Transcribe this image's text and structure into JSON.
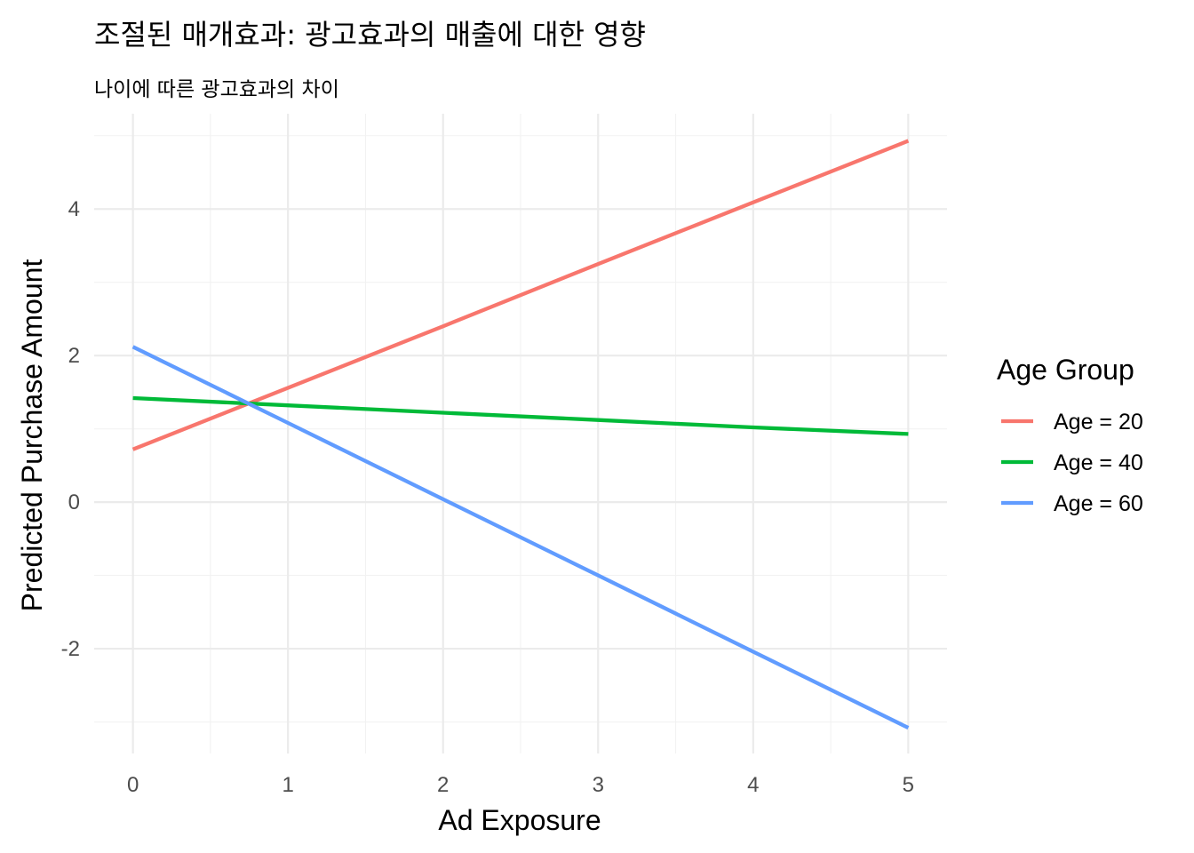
{
  "chart_data": {
    "type": "line",
    "title": "조절된 매개효과: 광고효과의 매출에 대한 영향",
    "subtitle": "나이에 따른 광고효과의 차이",
    "xlabel": "Ad Exposure",
    "ylabel": "Predicted Purchase Amount",
    "xlim": [
      -0.25,
      5.25
    ],
    "ylim": [
      -3.43,
      5.3
    ],
    "x_ticks": [
      0,
      1,
      2,
      3,
      4,
      5
    ],
    "y_ticks": [
      -2,
      0,
      2,
      4
    ],
    "grid": true,
    "legend": {
      "title": "Age Group",
      "position": "right"
    },
    "x": [
      0,
      1,
      2,
      3,
      4,
      5
    ],
    "series": [
      {
        "name": "Age = 20",
        "color": "#F8766D",
        "values": [
          0.72,
          1.56,
          2.4,
          3.25,
          4.09,
          4.93
        ]
      },
      {
        "name": "Age = 40",
        "color": "#00BA38",
        "values": [
          1.42,
          1.32,
          1.22,
          1.12,
          1.02,
          0.93
        ]
      },
      {
        "name": "Age = 60",
        "color": "#619CFF",
        "values": [
          2.12,
          1.08,
          0.04,
          -1.0,
          -2.04,
          -3.08
        ]
      }
    ]
  }
}
